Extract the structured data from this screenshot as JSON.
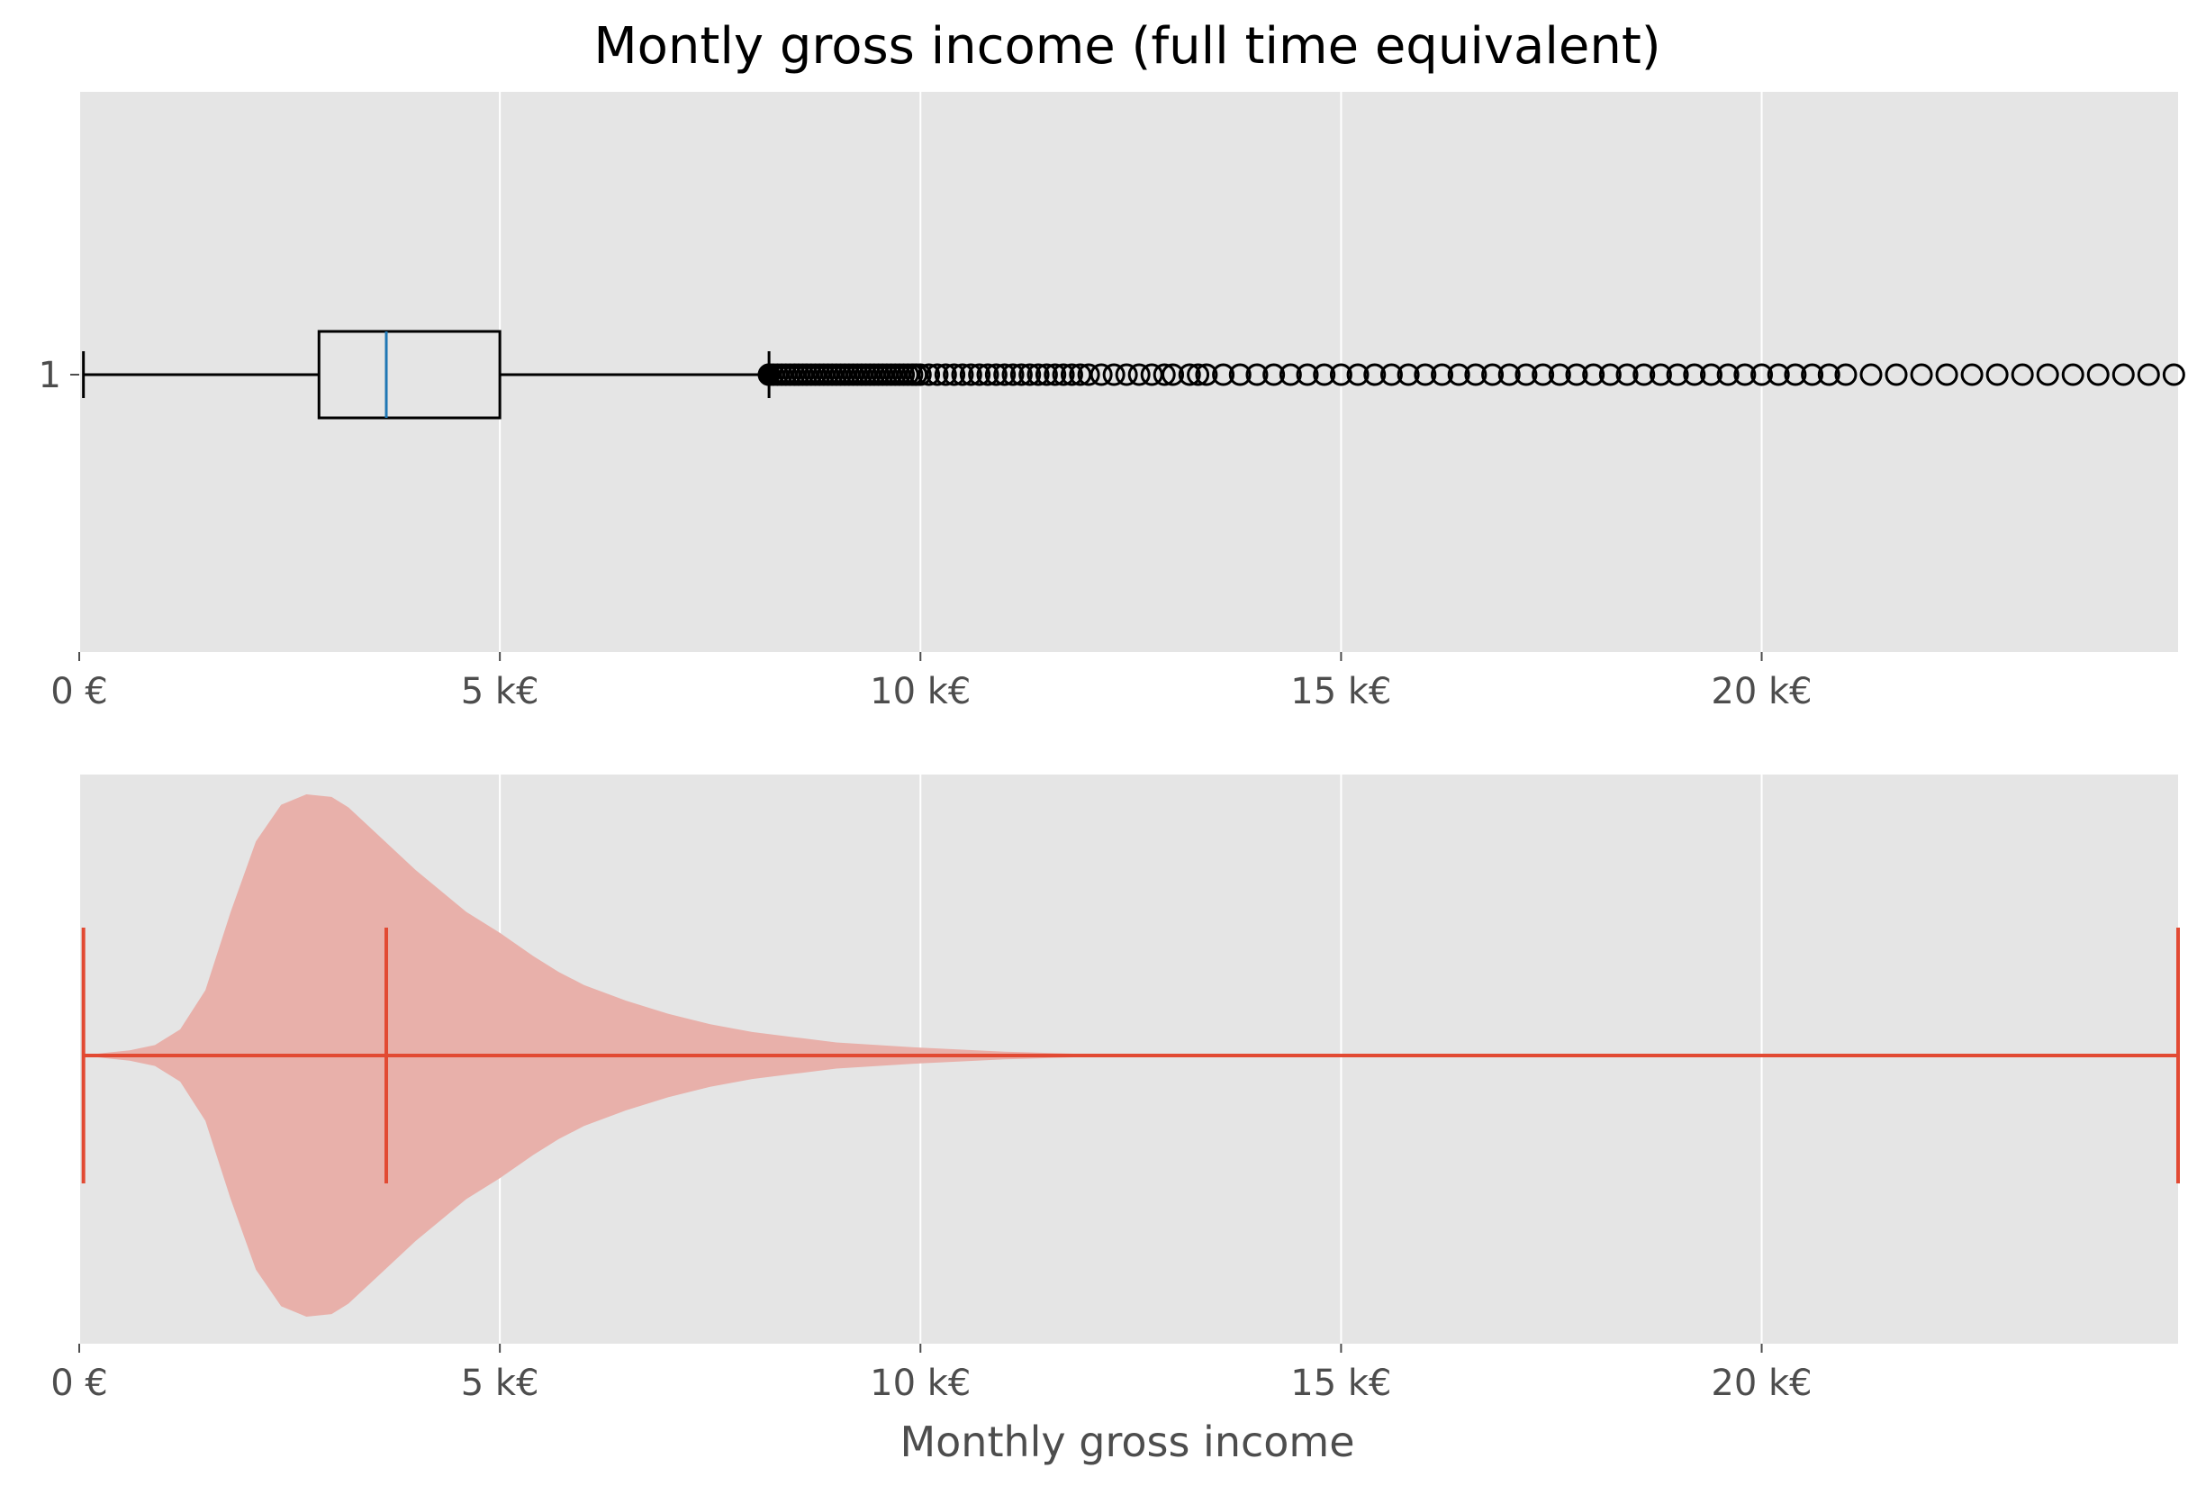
{
  "chart_data": {
    "title": "Montly gross income (full time equivalent)",
    "xlabel": "Monthly gross income",
    "xlim": [
      0,
      24950
    ],
    "x_ticks": [
      0,
      5000,
      10000,
      15000,
      20000
    ],
    "x_tick_labels": [
      "0 €",
      "5 k€",
      "10 k€",
      "15 k€",
      "20 k€"
    ],
    "grid": true,
    "colors": {
      "panel_bg": "#e5e5e5",
      "grid": "#ffffff",
      "box": "#000000",
      "median_line": "#1f77b4",
      "violin_fill": "#e8b0aa",
      "violin_lines": "#e24a33",
      "title_text": "#000000",
      "tick_text": "#4d4d4d"
    },
    "panels": [
      {
        "type": "boxplot",
        "orientation": "horizontal",
        "y_tick_labels": [
          "1"
        ],
        "min": 50,
        "q1": 2850,
        "median": 3650,
        "q3": 5000,
        "whisker_low": 50,
        "whisker_high": 8200,
        "outlier_range": [
          8200,
          24950
        ],
        "outliers": [
          8200,
          8250,
          8300,
          8350,
          8400,
          8450,
          8500,
          8550,
          8600,
          8650,
          8700,
          8750,
          8800,
          8850,
          8900,
          8950,
          9000,
          9050,
          9100,
          9150,
          9200,
          9250,
          9300,
          9350,
          9400,
          9450,
          9500,
          9550,
          9600,
          9650,
          9700,
          9750,
          9800,
          9850,
          9900,
          9950,
          10000,
          10100,
          10200,
          10300,
          10400,
          10500,
          10600,
          10700,
          10800,
          10900,
          11000,
          11100,
          11200,
          11300,
          11400,
          11500,
          11600,
          11700,
          11800,
          11900,
          12000,
          12150,
          12300,
          12450,
          12600,
          12750,
          12900,
          13000,
          13200,
          13300,
          13400,
          13600,
          13800,
          14000,
          14200,
          14400,
          14600,
          14800,
          15000,
          15200,
          15400,
          15600,
          15800,
          16000,
          16200,
          16400,
          16600,
          16800,
          17000,
          17200,
          17400,
          17600,
          17800,
          18000,
          18200,
          18400,
          18600,
          18800,
          19000,
          19200,
          19400,
          19600,
          19800,
          20000,
          20200,
          20400,
          20600,
          20800,
          21000,
          21300,
          21600,
          21900,
          22200,
          22500,
          22800,
          23100,
          23400,
          23700,
          24000,
          24300,
          24600,
          24900
        ]
      },
      {
        "type": "violin",
        "orientation": "horizontal",
        "min": 50,
        "median": 3650,
        "max": 24950,
        "density": {
          "x": [
            50,
            300,
            600,
            900,
            1200,
            1500,
            1800,
            2100,
            2400,
            2700,
            3000,
            3200,
            3400,
            3700,
            4000,
            4300,
            4600,
            5000,
            5400,
            5700,
            6000,
            6500,
            7000,
            7500,
            8000,
            8500,
            9000,
            10000,
            11000,
            12000,
            14000,
            17000,
            20000,
            24950
          ],
          "half_width": [
            0.0,
            0.01,
            0.02,
            0.04,
            0.1,
            0.25,
            0.55,
            0.82,
            0.96,
            1.0,
            0.99,
            0.95,
            0.89,
            0.8,
            0.71,
            0.63,
            0.55,
            0.47,
            0.38,
            0.32,
            0.27,
            0.21,
            0.16,
            0.12,
            0.09,
            0.07,
            0.05,
            0.03,
            0.015,
            0.005,
            0.0,
            0.0,
            0.0,
            0.0
          ]
        }
      }
    ]
  }
}
